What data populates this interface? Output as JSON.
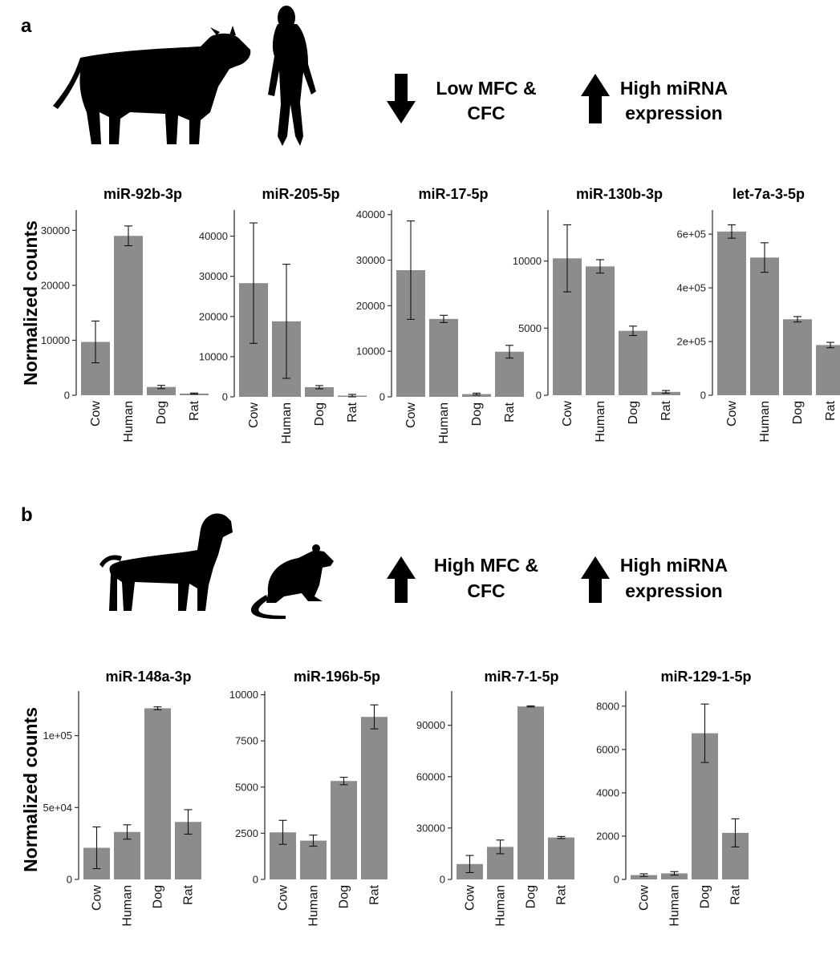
{
  "panels": [
    {
      "label": "a",
      "legend": {
        "arrow1_line1": "Low MFC &",
        "arrow1_line2": "CFC",
        "arrow2_line1": "High miRNA",
        "arrow2_line2": "expression"
      },
      "ylabel": "Normalized counts",
      "animals": [
        "cow-silhouette",
        "human-silhouette"
      ]
    },
    {
      "label": "b",
      "legend": {
        "arrow1_line1": "High MFC &",
        "arrow1_line2": "CFC",
        "arrow2_line1": "High miRNA",
        "arrow2_line2": "expression"
      },
      "ylabel": "Normalized counts",
      "animals": [
        "dog-silhouette",
        "rat-silhouette"
      ]
    }
  ],
  "colors": {
    "bar": "#8c8c8c",
    "arrow": "#000000",
    "axis": "#333333"
  },
  "chart_data": [
    {
      "panel": "a",
      "type": "bar",
      "title": "miR-92b-3p",
      "categories": [
        "Cow",
        "Human",
        "Dog",
        "Rat"
      ],
      "values": [
        9700,
        29000,
        1500,
        300
      ],
      "error": [
        3800,
        1800,
        300,
        100
      ],
      "ylim": [
        0,
        33700
      ],
      "yticks": [
        0,
        10000,
        20000,
        30000
      ],
      "ytick_labels": [
        "0",
        "10000",
        "20000",
        "30000"
      ]
    },
    {
      "panel": "a",
      "type": "bar",
      "title": "miR-205-5p",
      "categories": [
        "Cow",
        "Human",
        "Dog",
        "Rat"
      ],
      "values": [
        28300,
        18800,
        2400,
        300
      ],
      "error": [
        15000,
        14200,
        400,
        300
      ],
      "ylim": [
        0,
        46500
      ],
      "yticks": [
        0,
        10000,
        20000,
        30000,
        40000
      ],
      "ytick_labels": [
        "0",
        "10000",
        "20000",
        "30000",
        "40000"
      ]
    },
    {
      "panel": "a",
      "type": "bar",
      "title": "miR-17-5p",
      "categories": [
        "Cow",
        "Human",
        "Dog",
        "Rat"
      ],
      "values": [
        27800,
        17100,
        600,
        9900
      ],
      "error": [
        10800,
        800,
        200,
        1400
      ],
      "ylim": [
        0,
        41000
      ],
      "yticks": [
        0,
        10000,
        20000,
        30000,
        40000
      ],
      "ytick_labels": [
        "0",
        "10000",
        "20000",
        "30000",
        "40000"
      ]
    },
    {
      "panel": "a",
      "type": "bar",
      "title": "miR-130b-3p",
      "categories": [
        "Cow",
        "Human",
        "Dog",
        "Rat"
      ],
      "values": [
        10200,
        9600,
        4800,
        250
      ],
      "error": [
        2500,
        500,
        350,
        100
      ],
      "ylim": [
        0,
        13800
      ],
      "yticks": [
        0,
        5000,
        10000
      ],
      "ytick_labels": [
        "0",
        "5000",
        "10000"
      ]
    },
    {
      "panel": "a",
      "type": "bar",
      "title": "let-7a-3-5p",
      "categories": [
        "Cow",
        "Human",
        "Dog",
        "Rat"
      ],
      "values": [
        610000,
        513000,
        283000,
        187000
      ],
      "error": [
        25000,
        55000,
        10000,
        10000
      ],
      "ylim": [
        0,
        690000
      ],
      "yticks": [
        0,
        200000,
        400000,
        600000
      ],
      "ytick_labels": [
        "0",
        "2e+05",
        "4e+05",
        "6e+05"
      ]
    },
    {
      "panel": "b",
      "type": "bar",
      "title": "miR-148a-3p",
      "categories": [
        "Cow",
        "Human",
        "Dog",
        "Rat"
      ],
      "values": [
        22000,
        33000,
        119000,
        40000
      ],
      "error": [
        14500,
        5000,
        1000,
        8500
      ],
      "ylim": [
        0,
        131000
      ],
      "yticks": [
        0,
        50000,
        100000
      ],
      "ytick_labels": [
        "0",
        "5e+04",
        "1e+05"
      ]
    },
    {
      "panel": "b",
      "type": "bar",
      "title": "miR-196b-5p",
      "categories": [
        "Cow",
        "Human",
        "Dog",
        "Rat"
      ],
      "values": [
        2550,
        2100,
        5330,
        8800
      ],
      "error": [
        650,
        300,
        200,
        650
      ],
      "ylim": [
        0,
        10200
      ],
      "yticks": [
        0,
        2500,
        5000,
        7500,
        10000
      ],
      "ytick_labels": [
        "0",
        "2500",
        "5000",
        "7500",
        "10000"
      ]
    },
    {
      "panel": "b",
      "type": "bar",
      "title": "miR-7-1-5p",
      "categories": [
        "Cow",
        "Human",
        "Dog",
        "Rat"
      ],
      "values": [
        9000,
        19000,
        101000,
        24500
      ],
      "error": [
        5000,
        4000,
        300,
        600
      ],
      "ylim": [
        0,
        110000
      ],
      "yticks": [
        0,
        30000,
        60000,
        90000
      ],
      "ytick_labels": [
        "0",
        "30000",
        "60000",
        "90000"
      ]
    },
    {
      "panel": "b",
      "type": "bar",
      "title": "miR-129-1-5p",
      "categories": [
        "Cow",
        "Human",
        "Dog",
        "Rat"
      ],
      "values": [
        200,
        280,
        6750,
        2150
      ],
      "error": [
        60,
        80,
        1350,
        650
      ],
      "ylim": [
        0,
        8700
      ],
      "yticks": [
        0,
        2000,
        4000,
        6000,
        8000
      ],
      "ytick_labels": [
        "0",
        "2000",
        "4000",
        "6000",
        "8000"
      ]
    }
  ]
}
